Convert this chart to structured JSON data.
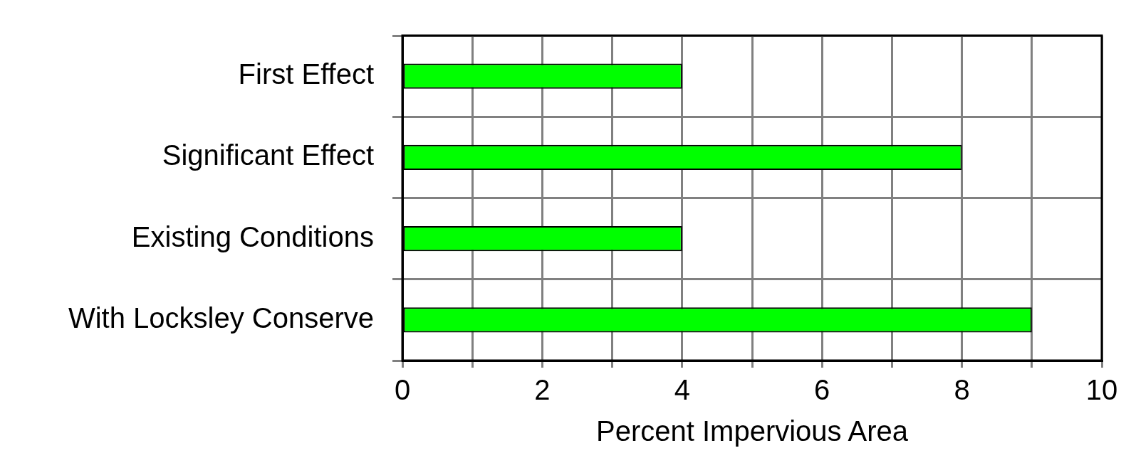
{
  "chart_data": {
    "type": "bar",
    "orientation": "horizontal",
    "xlabel": "Percent Impervious Area",
    "categories": [
      "First Effect",
      "Significant Effect",
      "Existing Conditions",
      "With Locksley Conserve"
    ],
    "values": [
      4,
      8,
      4,
      9
    ],
    "color": "#00ff00",
    "xlim": [
      0,
      10
    ],
    "xticks": [
      0,
      {
        "value": 1,
        "label": null
      },
      2,
      {
        "value": 3,
        "label": null
      },
      4,
      {
        "value": 5,
        "label": null
      },
      6,
      {
        "value": 7,
        "label": null
      },
      8,
      {
        "value": 9,
        "label": null
      },
      10
    ],
    "grid": true,
    "legend": false
  }
}
